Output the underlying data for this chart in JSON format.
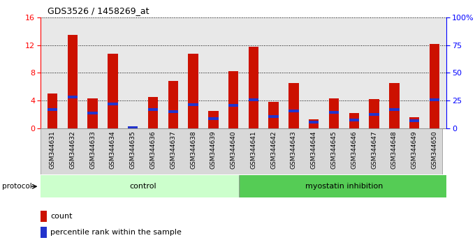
{
  "title": "GDS3526 / 1458269_at",
  "samples": [
    "GSM344631",
    "GSM344632",
    "GSM344633",
    "GSM344634",
    "GSM344635",
    "GSM344636",
    "GSM344637",
    "GSM344638",
    "GSM344639",
    "GSM344640",
    "GSM344641",
    "GSM344642",
    "GSM344643",
    "GSM344644",
    "GSM344645",
    "GSM344646",
    "GSM344647",
    "GSM344648",
    "GSM344649",
    "GSM344650"
  ],
  "counts": [
    5.0,
    13.5,
    4.3,
    10.8,
    0.35,
    4.5,
    6.8,
    10.8,
    2.5,
    8.2,
    11.8,
    3.8,
    6.5,
    1.3,
    4.3,
    2.2,
    4.2,
    6.5,
    1.6,
    12.2
  ],
  "blue_bottom": [
    2.5,
    4.3,
    2.0,
    3.3,
    0.0,
    2.5,
    2.2,
    3.2,
    1.2,
    3.1,
    3.9,
    1.5,
    2.3,
    0.7,
    2.1,
    1.0,
    1.8,
    2.5,
    0.9,
    3.9
  ],
  "blue_heights": [
    0.45,
    0.45,
    0.4,
    0.45,
    0.35,
    0.45,
    0.4,
    0.45,
    0.45,
    0.45,
    0.45,
    0.38,
    0.42,
    0.38,
    0.45,
    0.38,
    0.42,
    0.42,
    0.38,
    0.45
  ],
  "control_count": 10,
  "myostatin_count": 10,
  "ylim_left": [
    0,
    16
  ],
  "ylim_right": [
    0,
    100
  ],
  "yticks_left": [
    0,
    4,
    8,
    12,
    16
  ],
  "yticks_right": [
    0,
    25,
    50,
    75,
    100
  ],
  "bar_color": "#cc1100",
  "blue_color": "#2233cc",
  "control_color": "#ccffcc",
  "myostatin_color": "#55cc55",
  "bg_plot": "#e8e8e8",
  "legend_count_label": "count",
  "legend_pct_label": "percentile rank within the sample",
  "protocol_label": "protocol",
  "control_label": "control",
  "myostatin_label": "myostatin inhibition",
  "bar_width": 0.5
}
